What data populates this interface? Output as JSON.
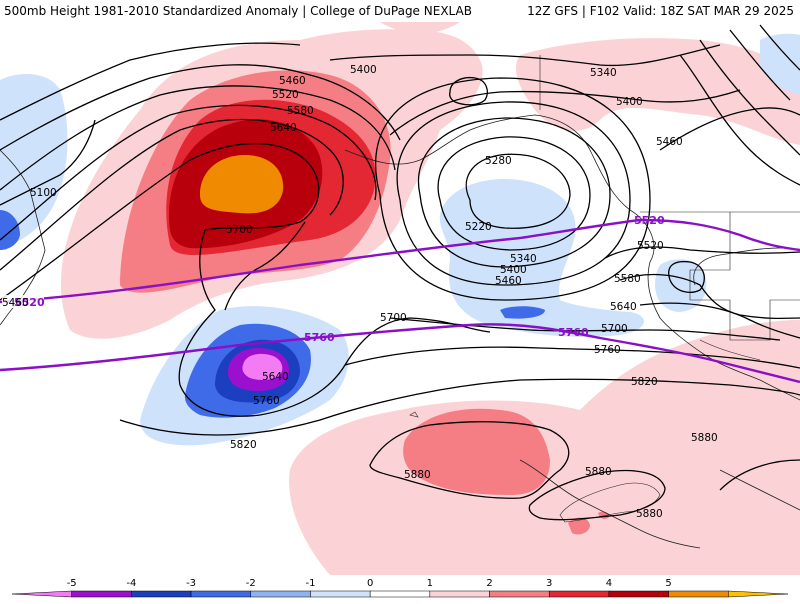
{
  "header": {
    "left_text": "500mb Height 1981-2010 Standardized Anomaly | College of DuPage NEXLAB",
    "right_text": "12Z GFS | F102 Valid: 18Z SAT MAR 29 2025"
  },
  "contours": {
    "black_labels": [
      "5460",
      "5400",
      "5520",
      "5580",
      "5640",
      "5100",
      "5700",
      "5340",
      "5400",
      "5460",
      "5280",
      "5220",
      "5340",
      "5400",
      "5460",
      "5700",
      "5640",
      "5760",
      "5820",
      "5520",
      "5580",
      "5640",
      "5700",
      "5760",
      "5820",
      "5880",
      "5880",
      "5880",
      "5880"
    ],
    "purple_labels": [
      "5520",
      "5520",
      "5760",
      "5760"
    ]
  },
  "colorbar": {
    "ticks": [
      "-5",
      "-4",
      "-3",
      "-2",
      "-1",
      "0",
      "1",
      "2",
      "3",
      "4",
      "5"
    ],
    "colors": [
      "#f37cf5",
      "#9b10cf",
      "#1b3fbf",
      "#3f6be8",
      "#8fb2f2",
      "#cfe2fb",
      "#ffffff",
      "#fbd3d6",
      "#f47e83",
      "#e32733",
      "#b8000c",
      "#f08a00",
      "#ffc000"
    ]
  }
}
